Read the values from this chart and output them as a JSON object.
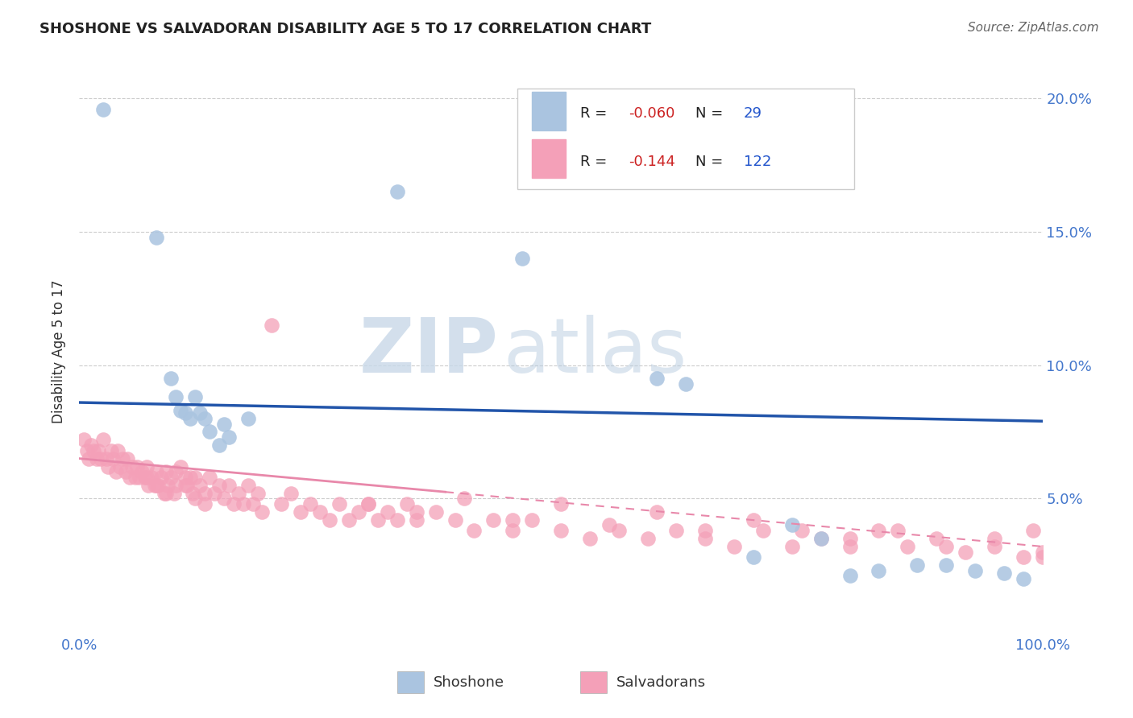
{
  "title": "SHOSHONE VS SALVADORAN DISABILITY AGE 5 TO 17 CORRELATION CHART",
  "source": "Source: ZipAtlas.com",
  "ylabel": "Disability Age 5 to 17",
  "legend_shoshone": "Shoshone",
  "legend_salvadorans": "Salvadorans",
  "shoshone_R": "-0.060",
  "shoshone_N": "29",
  "salvadoran_R": "-0.144",
  "salvadoran_N": "122",
  "shoshone_color": "#aac4e0",
  "salvadoran_color": "#f4a0b8",
  "trend_shoshone_color": "#2255aa",
  "trend_salvadoran_color": "#e888aa",
  "xlim": [
    0.0,
    1.0
  ],
  "ylim": [
    0.0,
    0.21
  ],
  "ytick_labels": [
    "5.0%",
    "10.0%",
    "15.0%",
    "20.0%"
  ],
  "ytick_values": [
    0.05,
    0.1,
    0.15,
    0.2
  ],
  "background_color": "#ffffff",
  "watermark_zip": "ZIP",
  "watermark_atlas": "atlas",
  "shoshone_x": [
    0.025,
    0.08,
    0.095,
    0.1,
    0.105,
    0.11,
    0.115,
    0.12,
    0.125,
    0.13,
    0.135,
    0.145,
    0.15,
    0.155,
    0.175,
    0.33,
    0.46,
    0.6,
    0.63,
    0.7,
    0.74,
    0.77,
    0.8,
    0.83,
    0.87,
    0.9,
    0.93,
    0.96,
    0.98
  ],
  "shoshone_y": [
    0.196,
    0.148,
    0.095,
    0.088,
    0.083,
    0.082,
    0.08,
    0.088,
    0.082,
    0.08,
    0.075,
    0.07,
    0.078,
    0.073,
    0.08,
    0.165,
    0.14,
    0.095,
    0.093,
    0.028,
    0.04,
    0.035,
    0.021,
    0.023,
    0.025,
    0.025,
    0.023,
    0.022,
    0.02
  ],
  "salvadoran_x": [
    0.005,
    0.008,
    0.01,
    0.012,
    0.015,
    0.018,
    0.02,
    0.022,
    0.025,
    0.028,
    0.03,
    0.033,
    0.035,
    0.038,
    0.04,
    0.042,
    0.045,
    0.048,
    0.05,
    0.052,
    0.055,
    0.058,
    0.06,
    0.062,
    0.065,
    0.068,
    0.07,
    0.072,
    0.075,
    0.078,
    0.08,
    0.082,
    0.085,
    0.088,
    0.09,
    0.092,
    0.095,
    0.098,
    0.1,
    0.105,
    0.11,
    0.112,
    0.115,
    0.118,
    0.12,
    0.125,
    0.13,
    0.135,
    0.14,
    0.145,
    0.15,
    0.155,
    0.16,
    0.165,
    0.17,
    0.175,
    0.18,
    0.185,
    0.19,
    0.2,
    0.21,
    0.22,
    0.23,
    0.24,
    0.25,
    0.26,
    0.27,
    0.28,
    0.29,
    0.3,
    0.31,
    0.32,
    0.33,
    0.34,
    0.35,
    0.37,
    0.39,
    0.41,
    0.43,
    0.45,
    0.47,
    0.5,
    0.53,
    0.56,
    0.59,
    0.62,
    0.65,
    0.68,
    0.71,
    0.74,
    0.77,
    0.8,
    0.83,
    0.86,
    0.89,
    0.92,
    0.95,
    0.98,
    0.99,
    1.0,
    0.3,
    0.35,
    0.4,
    0.45,
    0.5,
    0.55,
    0.6,
    0.65,
    0.7,
    0.75,
    0.8,
    0.85,
    0.9,
    0.95,
    1.0,
    0.07,
    0.08,
    0.09,
    0.1,
    0.11,
    0.12,
    0.13
  ],
  "salvadoran_y": [
    0.072,
    0.068,
    0.065,
    0.07,
    0.068,
    0.065,
    0.068,
    0.065,
    0.072,
    0.065,
    0.062,
    0.068,
    0.065,
    0.06,
    0.068,
    0.062,
    0.065,
    0.06,
    0.065,
    0.058,
    0.062,
    0.058,
    0.062,
    0.058,
    0.06,
    0.058,
    0.062,
    0.055,
    0.058,
    0.055,
    0.06,
    0.055,
    0.058,
    0.052,
    0.06,
    0.055,
    0.058,
    0.052,
    0.055,
    0.062,
    0.058,
    0.055,
    0.058,
    0.052,
    0.058,
    0.055,
    0.052,
    0.058,
    0.052,
    0.055,
    0.05,
    0.055,
    0.048,
    0.052,
    0.048,
    0.055,
    0.048,
    0.052,
    0.045,
    0.115,
    0.048,
    0.052,
    0.045,
    0.048,
    0.045,
    0.042,
    0.048,
    0.042,
    0.045,
    0.048,
    0.042,
    0.045,
    0.042,
    0.048,
    0.042,
    0.045,
    0.042,
    0.038,
    0.042,
    0.038,
    0.042,
    0.038,
    0.035,
    0.038,
    0.035,
    0.038,
    0.035,
    0.032,
    0.038,
    0.032,
    0.035,
    0.032,
    0.038,
    0.032,
    0.035,
    0.03,
    0.032,
    0.028,
    0.038,
    0.028,
    0.048,
    0.045,
    0.05,
    0.042,
    0.048,
    0.04,
    0.045,
    0.038,
    0.042,
    0.038,
    0.035,
    0.038,
    0.032,
    0.035,
    0.03,
    0.058,
    0.055,
    0.052,
    0.06,
    0.055,
    0.05,
    0.048
  ]
}
